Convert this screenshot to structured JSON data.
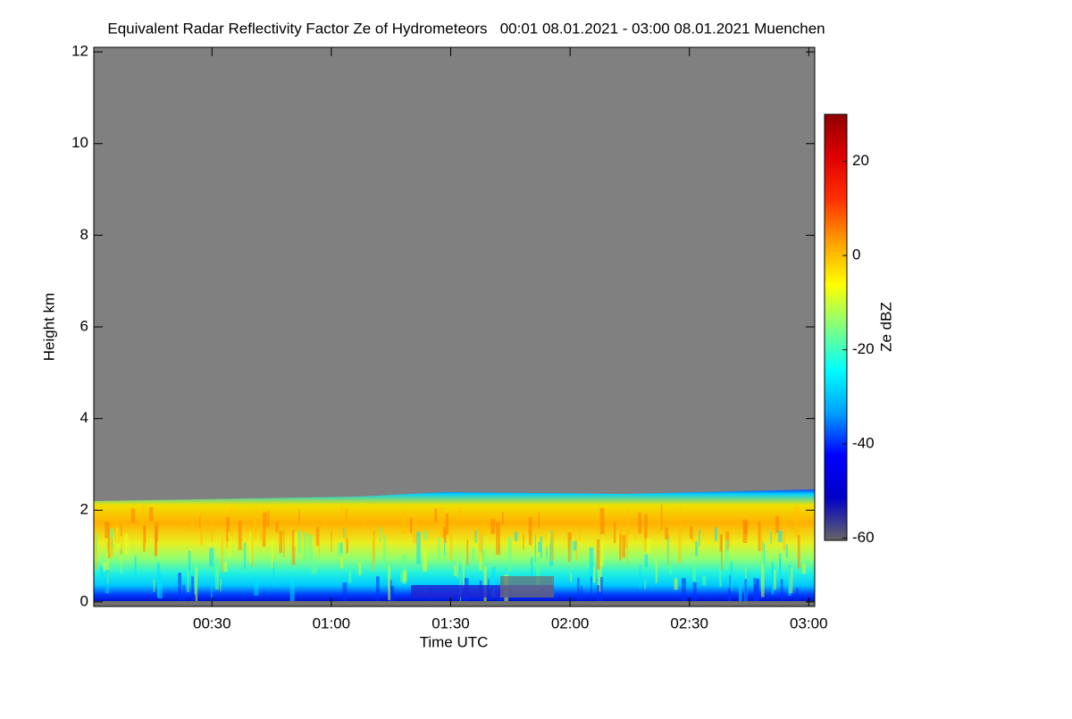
{
  "chart_data": {
    "type": "heatmap",
    "title": "Equivalent Radar Reflectivity Factor Ze of Hydrometeors   00:01 08.01.2021 - 03:00 08.01.2021 Muenchen",
    "xlabel": "Time UTC",
    "ylabel": "Height km",
    "xlim": [
      0.3,
      181.5
    ],
    "xticks": [
      {
        "value": 30,
        "label": "00:30"
      },
      {
        "value": 60,
        "label": "01:00"
      },
      {
        "value": 90,
        "label": "01:30"
      },
      {
        "value": 120,
        "label": "02:00"
      },
      {
        "value": 150,
        "label": "02:30"
      },
      {
        "value": 180,
        "label": "03:00"
      }
    ],
    "ylim": [
      -0.1,
      12.1
    ],
    "yticks": [
      0,
      2,
      4,
      6,
      8,
      10,
      12
    ],
    "colorbar": {
      "label": "Ze dBZ",
      "lim": [
        -60.5,
        30
      ],
      "ticks": [
        -60,
        -40,
        -20,
        0,
        20
      ],
      "colors": [
        "#666666",
        "#0000c8",
        "#0000ff",
        "#00a0ff",
        "#00ffff",
        "#80ff80",
        "#ffff00",
        "#ffa000",
        "#ff3000",
        "#e00000",
        "#900000"
      ]
    },
    "background_color": "#808080"
  }
}
